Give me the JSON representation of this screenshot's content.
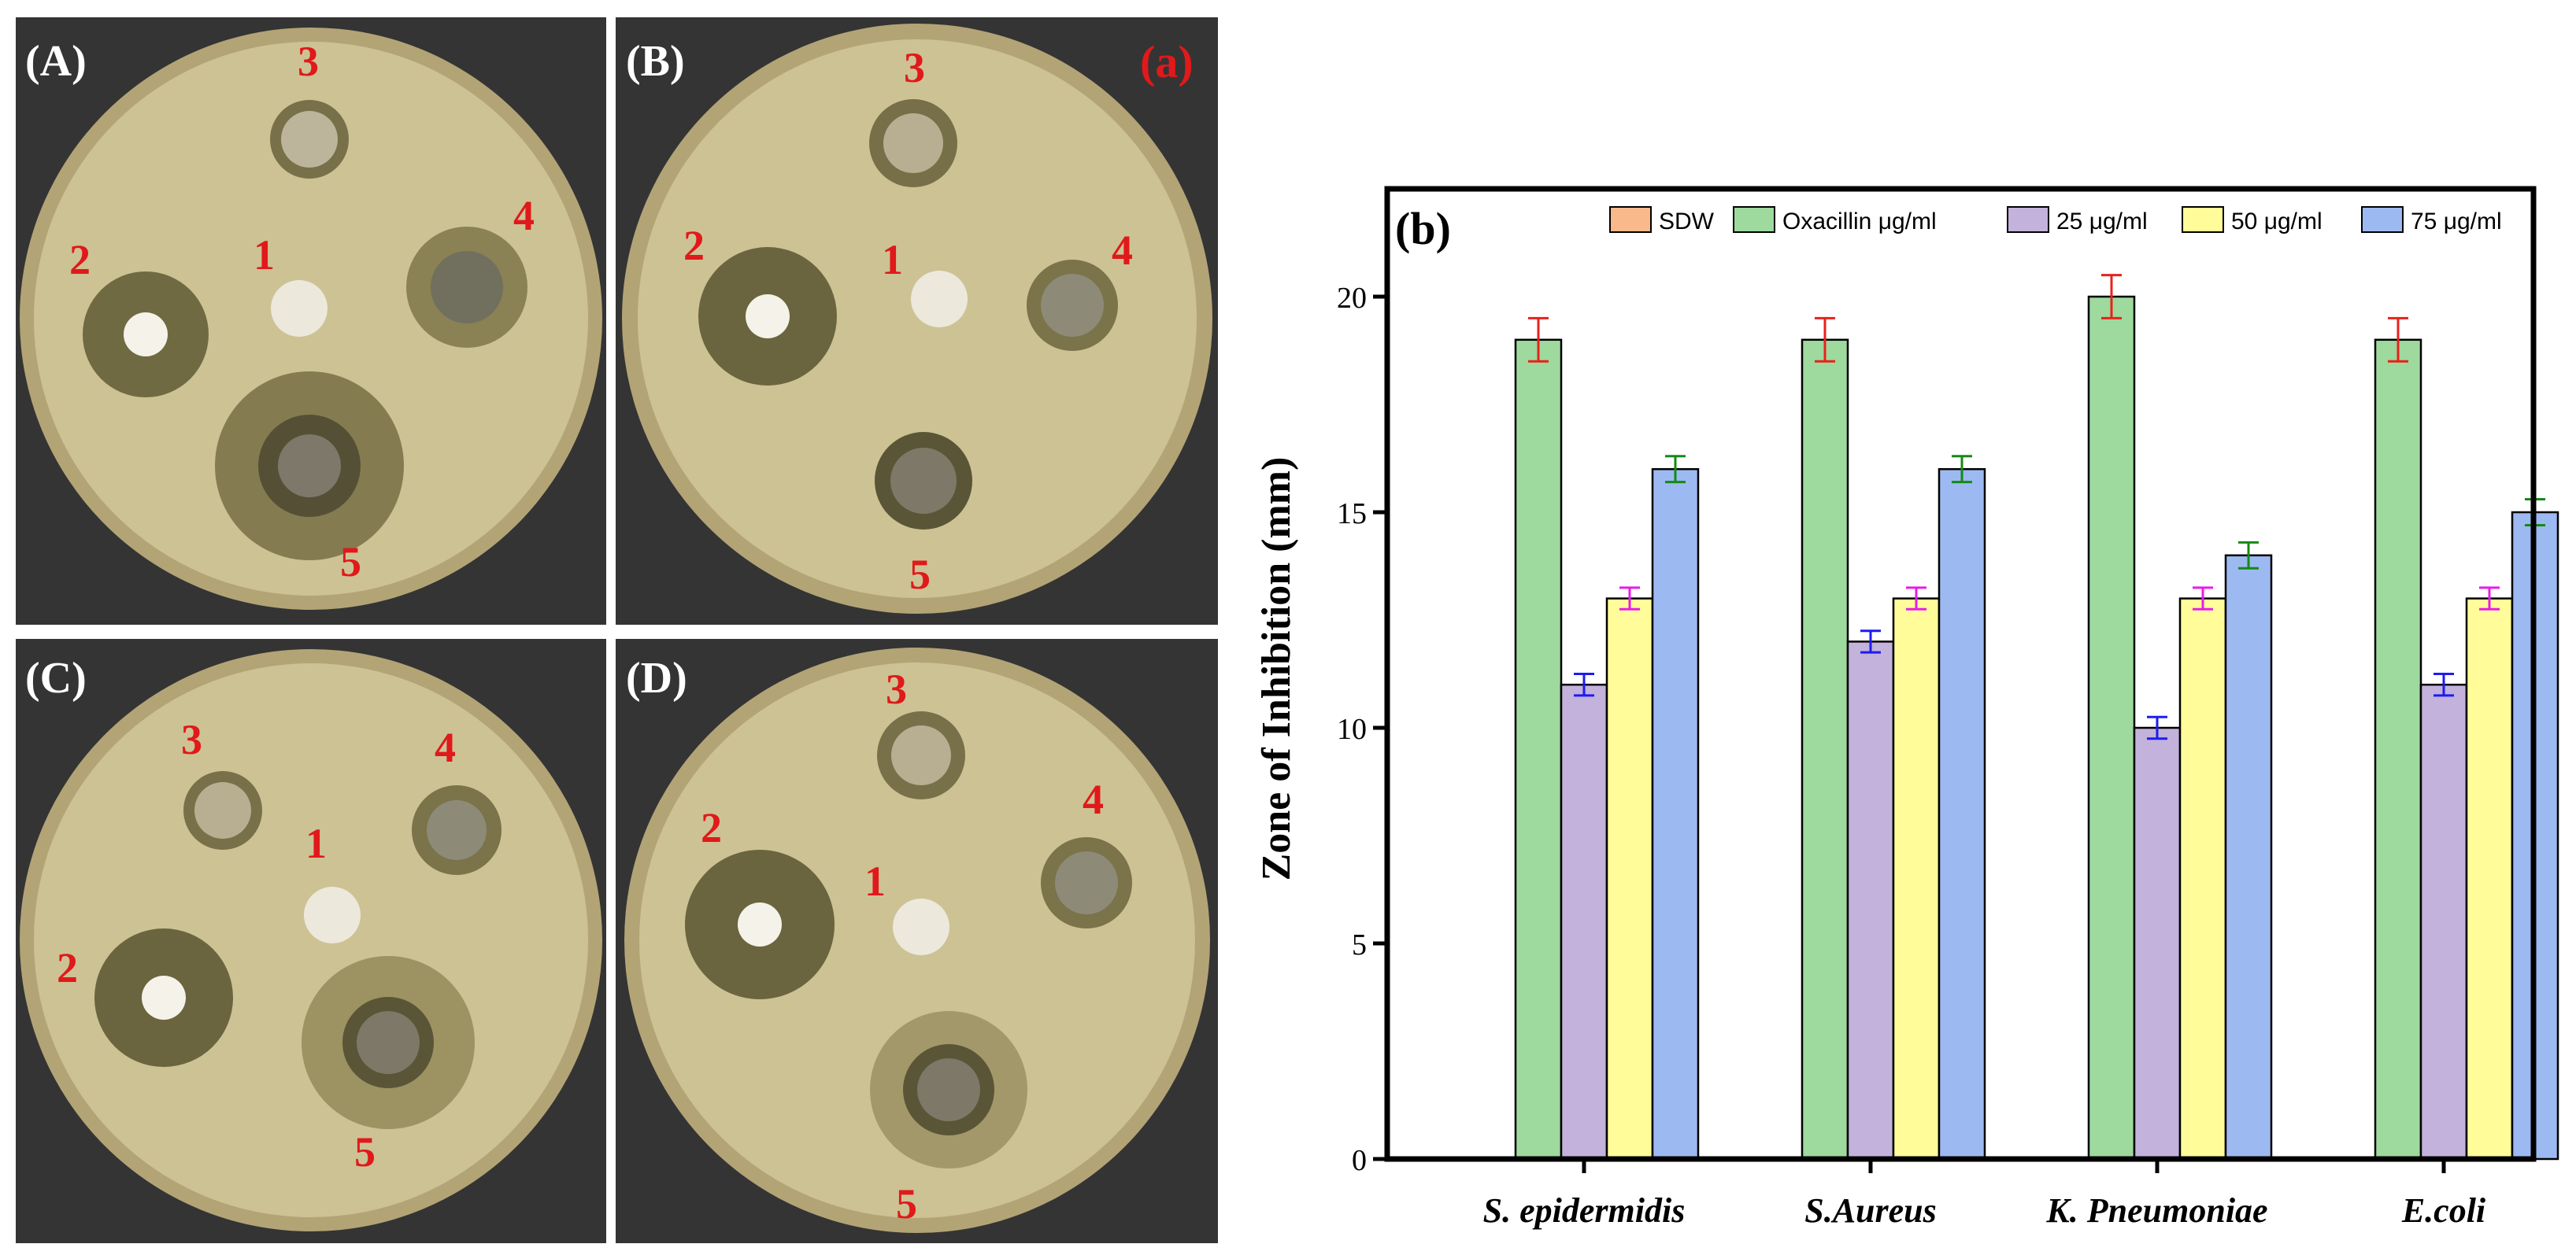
{
  "figure_label": "(a)",
  "plates": [
    {
      "id": "A",
      "label": "(A)",
      "disc_labels": [
        "1",
        "2",
        "3",
        "4",
        "5"
      ]
    },
    {
      "id": "B",
      "label": "(B)",
      "disc_labels": [
        "1",
        "2",
        "3",
        "4",
        "5"
      ]
    },
    {
      "id": "C",
      "label": "(C)",
      "disc_labels": [
        "1",
        "2",
        "3",
        "4",
        "5"
      ]
    },
    {
      "id": "D",
      "label": "(D)",
      "disc_labels": [
        "1",
        "2",
        "3",
        "4",
        "5"
      ]
    }
  ],
  "colors": {
    "label_red": "#e0191b",
    "plate_bg": "#343434",
    "agar": "#cdc294",
    "zone": "#6f6a42",
    "paper_disc": "#ece8dc"
  },
  "chart_data": {
    "type": "bar",
    "panel_label": "(b)",
    "ylabel": "Zone of Inhibition (mm)",
    "xlabel": "",
    "ylim": [
      0,
      22.5
    ],
    "yticks": [
      0,
      5,
      10,
      15,
      20
    ],
    "categories": [
      "S. epidermidis",
      "S.Aureus",
      "K. Pneumoniae",
      "E.coli"
    ],
    "series": [
      {
        "name": "SDW",
        "color": "#f9b98a",
        "values": [
          0,
          0,
          0,
          0
        ],
        "errors": [
          0,
          0,
          0,
          0
        ],
        "error_color": "#e8211c"
      },
      {
        "name": "Oxacillin  μg/ml",
        "color": "#9ed99e",
        "values": [
          19,
          19,
          20,
          19
        ],
        "errors": [
          0.5,
          0.5,
          0.5,
          0.5
        ],
        "error_color": "#e8211c"
      },
      {
        "name": "25 μg/ml",
        "color": "#c3b2db",
        "values": [
          11,
          12,
          10,
          11
        ],
        "errors": [
          0.25,
          0.25,
          0.25,
          0.25
        ],
        "error_color": "#1c1cf0"
      },
      {
        "name": "50 μg/ml",
        "color": "#fffc99",
        "values": [
          13,
          13,
          13,
          13
        ],
        "errors": [
          0.25,
          0.25,
          0.25,
          0.25
        ],
        "error_color": "#e81ce8"
      },
      {
        "name": "75 μg/ml",
        "color": "#9db9f2",
        "values": [
          16,
          16,
          14,
          15
        ],
        "errors": [
          0.3,
          0.3,
          0.3,
          0.3
        ],
        "error_color": "#148a14"
      }
    ],
    "legend_position": "top"
  }
}
